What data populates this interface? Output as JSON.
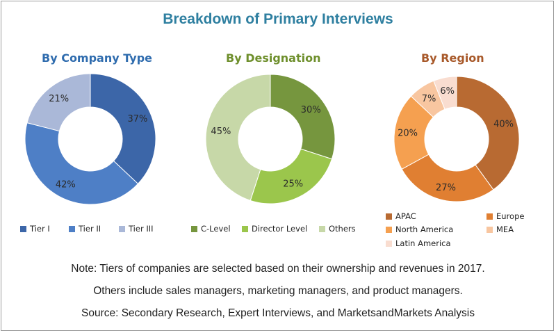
{
  "title": "Breakdown of Primary Interviews",
  "chart_data": [
    {
      "type": "donut",
      "title": "By Company Type",
      "title_color": "#2f6cae",
      "labels": [
        "Tier I",
        "Tier II",
        "Tier III"
      ],
      "values": [
        37,
        42,
        21
      ],
      "value_labels": [
        "37%",
        "42%",
        "21%"
      ],
      "colors": [
        "#3c66a8",
        "#4e7fc6",
        "#aab8d8"
      ]
    },
    {
      "type": "donut",
      "title": "By Designation",
      "title_color": "#6e8f2c",
      "labels": [
        "C-Level",
        "Director Level",
        "Others"
      ],
      "values": [
        30,
        25,
        45
      ],
      "value_labels": [
        "30%",
        "25%",
        "45%"
      ],
      "colors": [
        "#76963e",
        "#9bc64c",
        "#c7d8a8"
      ]
    },
    {
      "type": "donut",
      "title": "By Region",
      "title_color": "#a8592a",
      "labels": [
        "APAC",
        "Europe",
        "North America",
        "MEA",
        "Latin America"
      ],
      "values": [
        40,
        27,
        20,
        7,
        6
      ],
      "value_labels": [
        "40%",
        "27%",
        "20%",
        "7%",
        "6%"
      ],
      "colors": [
        "#b86a32",
        "#e07f32",
        "#f5a050",
        "#f8c6a0",
        "#f9ddd0"
      ]
    }
  ],
  "notes": [
    "Note: Tiers of companies are selected based on their ownership and revenues in 2017.",
    "Others include sales managers, marketing managers, and product managers.",
    "Source: Secondary Research, Expert Interviews, and MarketsandMarkets Analysis"
  ]
}
